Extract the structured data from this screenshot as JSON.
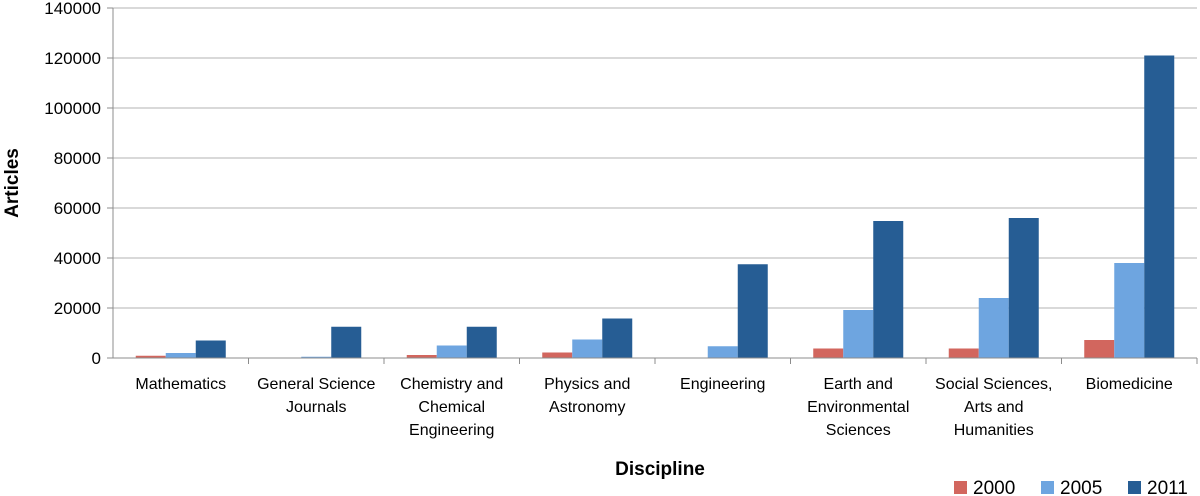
{
  "chart_data": {
    "type": "bar",
    "xlabel": "Discipline",
    "ylabel": "Articles",
    "ylim": [
      0,
      140000
    ],
    "yticks": [
      "0",
      "20000",
      "40000",
      "60000",
      "80000",
      "100000",
      "120000",
      "140000"
    ],
    "grid": true,
    "legend": "bottom-right",
    "categories": [
      [
        "Mathematics"
      ],
      [
        "General Science",
        "Journals"
      ],
      [
        "Chemistry and",
        "Chemical",
        "Engineering"
      ],
      [
        "Physics and",
        "Astronomy"
      ],
      [
        "Engineering"
      ],
      [
        "Earth and",
        "Environmental",
        "Sciences"
      ],
      [
        "Social Sciences,",
        "Arts and",
        "Humanities"
      ],
      [
        "Biomedicine"
      ]
    ],
    "series": [
      {
        "name": "2000",
        "color": "#d2665e",
        "values": [
          900,
          200,
          1200,
          2200,
          0,
          3800,
          3800,
          7200
        ]
      },
      {
        "name": "2005",
        "color": "#6ea5e0",
        "values": [
          2000,
          500,
          5000,
          7400,
          4700,
          19200,
          24000,
          38000
        ]
      },
      {
        "name": "2011",
        "color": "#265d94",
        "values": [
          7000,
          12500,
          12500,
          15800,
          37500,
          54800,
          56000,
          121000
        ]
      }
    ]
  }
}
